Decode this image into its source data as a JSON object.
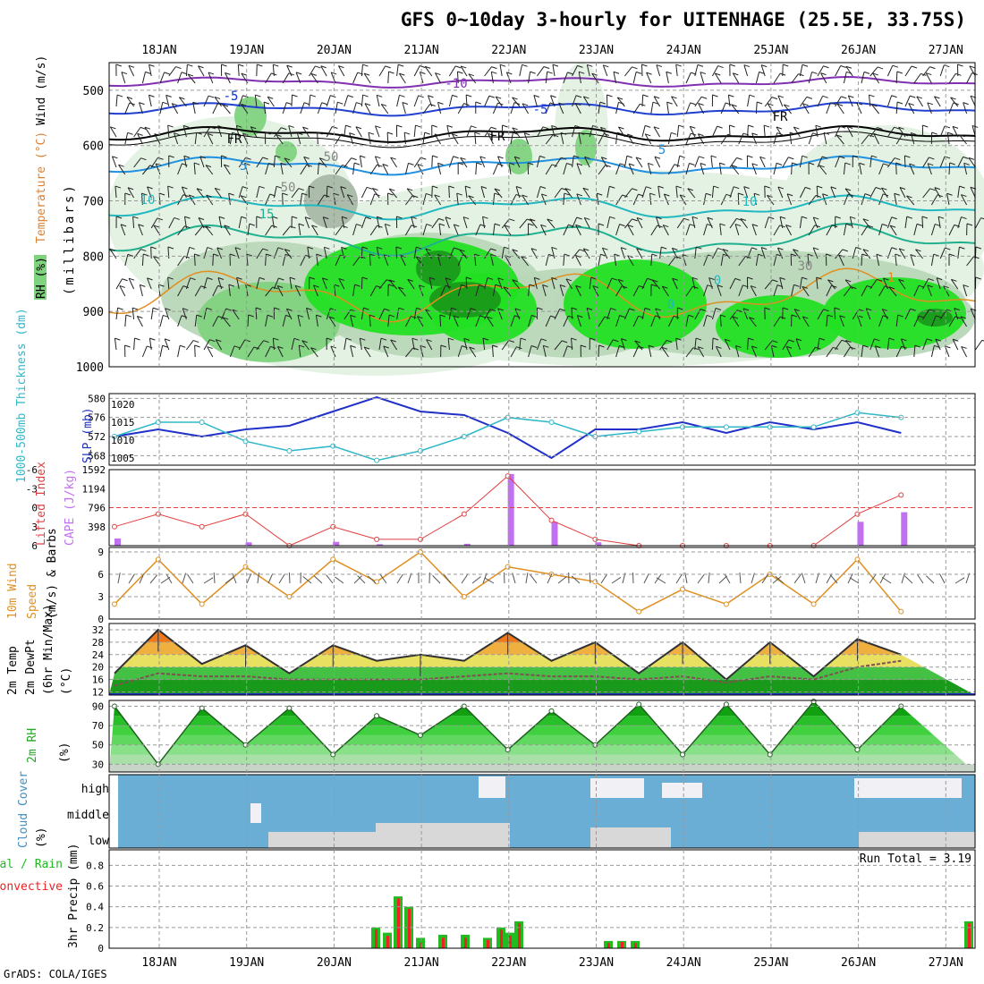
{
  "title": "GFS 0~10day 3-hourly for UITENHAGE (25.5E, 33.75S)",
  "credit": "GrADS: COLA/IGES",
  "days": [
    "18JAN",
    "19JAN",
    "20JAN",
    "21JAN",
    "22JAN",
    "23JAN",
    "24JAN",
    "25JAN",
    "26JAN",
    "27JAN"
  ],
  "colors": {
    "rh_light": "#e3f1e3",
    "rh_mid": "#b9d7b9",
    "rh_gray": "#a8b8a8",
    "rh_green": "#7fd37f",
    "rh_bright": "#22e022",
    "rh_dark": "#1a9a1a",
    "slp": "#2030c8",
    "thickness": "#30b8c8",
    "lifted": "#e04040",
    "cape": "#c070f0",
    "wind": "#e09020",
    "cloud": "#6aaed6",
    "cloud_clear": "#d8d8d8",
    "precip_total": "#22bb22",
    "precip_conv": "#ee2222"
  },
  "panel1": {
    "ylabels": [
      "RH (%)",
      "Temperature (°C)",
      "Wind (m/s)"
    ],
    "yunit": "(millibars)",
    "levels": [
      500,
      600,
      700,
      800,
      900,
      1000
    ],
    "contour_labels": [
      "-10",
      "-5",
      "-5",
      "FR",
      "FR",
      "FR",
      "-5",
      "5",
      "5",
      "10",
      "10",
      "15",
      "0",
      "0",
      "30",
      "50",
      "50",
      "1"
    ]
  },
  "panel2": {
    "ylabel_left": "1000-500mb Thickness (dm)",
    "ylabel_right": "SLP (mb)",
    "ticks_left": [
      568,
      572,
      576,
      580
    ],
    "ticks_right": [
      1005,
      1010,
      1015,
      1020
    ]
  },
  "panel3": {
    "ylabel_left": "Lifted Index",
    "ylabel_right": "CAPE (J/kg)",
    "ticks_left": [
      "6",
      "3",
      "0",
      "-3",
      "-6"
    ],
    "ticks_right": [
      "398",
      "796",
      "1194",
      "1592"
    ]
  },
  "panel4": {
    "ylabel": [
      "10m Wind",
      "Speed",
      "(m/s) & Barbs"
    ],
    "ticks": [
      0,
      3,
      6,
      9
    ]
  },
  "panel5": {
    "ylabel": [
      "2m Temp",
      "2m DewPt",
      "(6hr Min/Max)",
      "(°C)"
    ],
    "ticks": [
      12,
      16,
      20,
      24,
      28,
      32
    ]
  },
  "panel6": {
    "ylabel": [
      "2m RH",
      "(%)"
    ],
    "ticks": [
      30,
      50,
      70,
      90
    ]
  },
  "panel7": {
    "ylabel": [
      "Cloud Cover",
      "(%)"
    ],
    "levels": [
      "high",
      "middle",
      "low"
    ]
  },
  "panel8": {
    "ylabel": [
      "Total / Rain",
      "Convective",
      "3hr Precip (mm)"
    ],
    "ticks": [
      "0",
      "0.2",
      "0.4",
      "0.6",
      "0.8"
    ],
    "run_total": "Run Total = 3.19"
  },
  "chart_data": [
    {
      "type": "line",
      "title": "1000-500mb Thickness (dm) / SLP (mb)",
      "x": [
        "18JAN",
        "18JAN12",
        "19JAN",
        "19JAN12",
        "20JAN",
        "20JAN12",
        "21JAN",
        "21JAN12",
        "22JAN",
        "22JAN12",
        "23JAN",
        "23JAN12",
        "24JAN",
        "24JAN12",
        "25JAN",
        "25JAN12",
        "26JAN",
        "26JAN12",
        "27JAN"
      ],
      "series": [
        {
          "name": "SLP (mb)",
          "values": [
            1011,
            1013,
            1011,
            1013,
            1014,
            1018,
            1022,
            1018,
            1017,
            1012,
            1005,
            1013,
            1013,
            1015,
            1012,
            1015,
            1013,
            1015,
            1012
          ]
        },
        {
          "name": "1000-500mb Thickness (dm)",
          "values": [
            572,
            575,
            575,
            571,
            569,
            570,
            567,
            569,
            572,
            576,
            575,
            572,
            573,
            574,
            574,
            574,
            574,
            577,
            576
          ]
        }
      ]
    },
    {
      "type": "bar",
      "title": "Lifted Index / CAPE (J/kg)",
      "x": [
        "18JAN",
        "18JAN12",
        "19JAN",
        "19JAN12",
        "20JAN",
        "20JAN12",
        "21JAN",
        "21JAN12",
        "22JAN",
        "22JAN12",
        "23JAN",
        "23JAN12",
        "24JAN",
        "24JAN12",
        "25JAN",
        "25JAN12",
        "26JAN",
        "26JAN12",
        "27JAN"
      ],
      "series": [
        {
          "name": "Lifted Index",
          "values": [
            3,
            1,
            3,
            1,
            6,
            3,
            5,
            5,
            1,
            -5,
            2,
            5,
            6,
            6,
            6,
            6,
            6,
            1,
            -2
          ]
        },
        {
          "name": "CAPE (J/kg)",
          "values": [
            150,
            0,
            0,
            70,
            0,
            80,
            30,
            0,
            40,
            1500,
            500,
            70,
            0,
            0,
            0,
            0,
            0,
            500,
            700
          ]
        }
      ]
    },
    {
      "type": "line",
      "title": "10m Wind Speed (m/s)",
      "x": [
        "18JAN",
        "18JAN12",
        "19JAN",
        "19JAN12",
        "20JAN",
        "20JAN12",
        "21JAN",
        "21JAN12",
        "22JAN",
        "22JAN12",
        "23JAN",
        "23JAN12",
        "24JAN",
        "24JAN12",
        "25JAN",
        "25JAN12",
        "26JAN",
        "26JAN12",
        "27JAN"
      ],
      "series": [
        {
          "name": "Speed",
          "values": [
            2,
            8,
            2,
            7,
            3,
            8,
            5,
            9,
            3,
            7,
            6,
            5,
            1,
            4,
            2,
            6,
            2,
            8,
            1
          ]
        }
      ]
    },
    {
      "type": "area",
      "title": "2m Temp / 2m DewPt (°C)",
      "x": [
        "18JAN",
        "18JAN12",
        "19JAN",
        "19JAN12",
        "20JAN",
        "20JAN12",
        "21JAN",
        "21JAN12",
        "22JAN",
        "22JAN12",
        "23JAN",
        "23JAN12",
        "24JAN",
        "24JAN12",
        "25JAN",
        "25JAN12",
        "26JAN",
        "26JAN12",
        "27JAN"
      ],
      "series": [
        {
          "name": "2m Temp",
          "values": [
            18,
            32,
            21,
            27,
            18,
            27,
            22,
            24,
            22,
            31,
            22,
            28,
            18,
            28,
            16,
            28,
            17,
            29,
            24
          ]
        },
        {
          "name": "2m DewPt",
          "values": [
            14,
            18,
            17,
            17,
            16,
            16,
            16,
            16,
            17,
            18,
            17,
            17,
            16,
            17,
            15,
            17,
            16,
            20,
            22
          ]
        }
      ]
    },
    {
      "type": "area",
      "title": "2m RH (%)",
      "x": [
        "18JAN",
        "18JAN12",
        "19JAN",
        "19JAN12",
        "20JAN",
        "20JAN12",
        "21JAN",
        "21JAN12",
        "22JAN",
        "22JAN12",
        "23JAN",
        "23JAN12",
        "24JAN",
        "24JAN12",
        "25JAN",
        "25JAN12",
        "26JAN",
        "26JAN12",
        "27JAN"
      ],
      "series": [
        {
          "name": "2m RH",
          "values": [
            90,
            30,
            88,
            50,
            88,
            40,
            80,
            60,
            90,
            45,
            85,
            50,
            92,
            40,
            92,
            40,
            95,
            45,
            90
          ]
        }
      ]
    },
    {
      "type": "bar",
      "title": "3hr Precip (mm)",
      "x": [
        "21JAN",
        "21JAN03",
        "21JAN06",
        "21JAN09",
        "21JAN12",
        "21JAN15",
        "21JAN18",
        "21JAN21",
        "22JAN",
        "22JAN03",
        "22JAN06",
        "23JAN",
        "23JAN03",
        "23JAN06",
        "27JAN"
      ],
      "series": [
        {
          "name": "Total",
          "values": [
            0.2,
            0.15,
            0.5,
            0.4,
            0.1,
            0.13,
            0.13,
            0.1,
            0.2,
            0.15,
            0.26,
            0.07,
            0.07,
            0.07,
            0.26
          ]
        },
        {
          "name": "Convective",
          "values": [
            0.18,
            0.12,
            0.48,
            0.38,
            0.05,
            0.1,
            0.1,
            0.08,
            0.18,
            0.12,
            0.24,
            0.05,
            0.06,
            0.05,
            0.24
          ]
        }
      ],
      "ylim": [
        0,
        0.9
      ]
    }
  ]
}
